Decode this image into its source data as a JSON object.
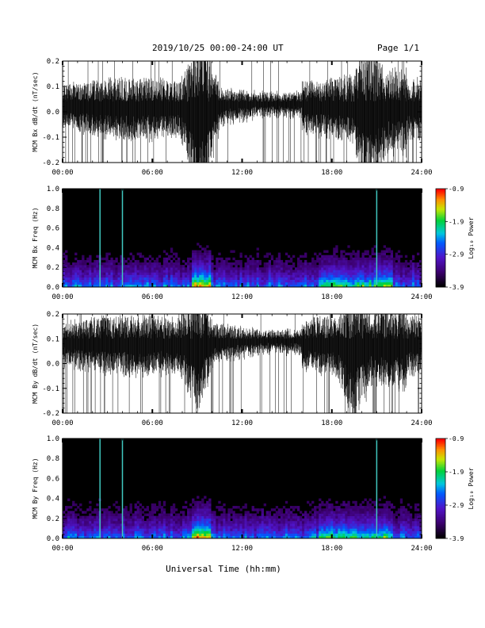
{
  "header": {
    "title": "2019/10/25  00:00-24:00 UT",
    "page": "Page 1/1"
  },
  "xlabel": "Universal Time (hh:mm)",
  "chart_data": [
    {
      "type": "line",
      "ylabel": "MCM Bx dB/dt (nT/sec)",
      "x": [
        "00:00",
        "06:00",
        "12:00",
        "18:00",
        "24:00"
      ],
      "xlim": [
        0,
        24
      ],
      "ylim": [
        -0.2,
        0.2
      ],
      "yticks": [
        "-0.2",
        "-0.1",
        "0.0",
        "0.1",
        "0.2"
      ],
      "baseline": 0.04,
      "bursts": [
        9.0,
        9.5,
        20.5
      ]
    },
    {
      "type": "heatmap",
      "ylabel": "MCM Bx Freq (Hz)",
      "x": [
        "00:00",
        "06:00",
        "12:00",
        "18:00",
        "24:00"
      ],
      "xlim": [
        0,
        24
      ],
      "ylim": [
        0,
        1
      ],
      "yticks": [
        "0.0",
        "0.2",
        "0.4",
        "0.6",
        "0.8",
        "1.0"
      ],
      "colorbar_label": "Log₁₀ Power",
      "colorbar_ticks": [
        "-3.9",
        "-2.9",
        "-1.9",
        "-0.9"
      ],
      "colorbar_range": [
        -3.9,
        -0.9
      ],
      "vertical_lines": [
        2.5,
        4.0,
        21.0
      ]
    },
    {
      "type": "line",
      "ylabel": "MCM By dB/dt (nT/sec)",
      "x": [
        "00:00",
        "06:00",
        "12:00",
        "18:00",
        "24:00"
      ],
      "xlim": [
        0,
        24
      ],
      "ylim": [
        -0.2,
        0.2
      ],
      "yticks": [
        "-0.2",
        "-0.1",
        "0.0",
        "0.1",
        "0.2"
      ],
      "baseline": 0.1,
      "bursts": [
        9.0,
        19.5
      ]
    },
    {
      "type": "heatmap",
      "ylabel": "MCM By Freq (Hz)",
      "x": [
        "00:00",
        "06:00",
        "12:00",
        "18:00",
        "24:00"
      ],
      "xlim": [
        0,
        24
      ],
      "ylim": [
        0,
        1
      ],
      "yticks": [
        "0.0",
        "0.2",
        "0.4",
        "0.6",
        "0.8",
        "1.0"
      ],
      "colorbar_label": "Log₁₀ Power",
      "colorbar_ticks": [
        "-3.9",
        "-2.9",
        "-1.9",
        "-0.9"
      ],
      "colorbar_range": [
        -3.9,
        -0.9
      ],
      "vertical_lines": [
        2.5,
        4.0,
        21.0
      ]
    }
  ]
}
